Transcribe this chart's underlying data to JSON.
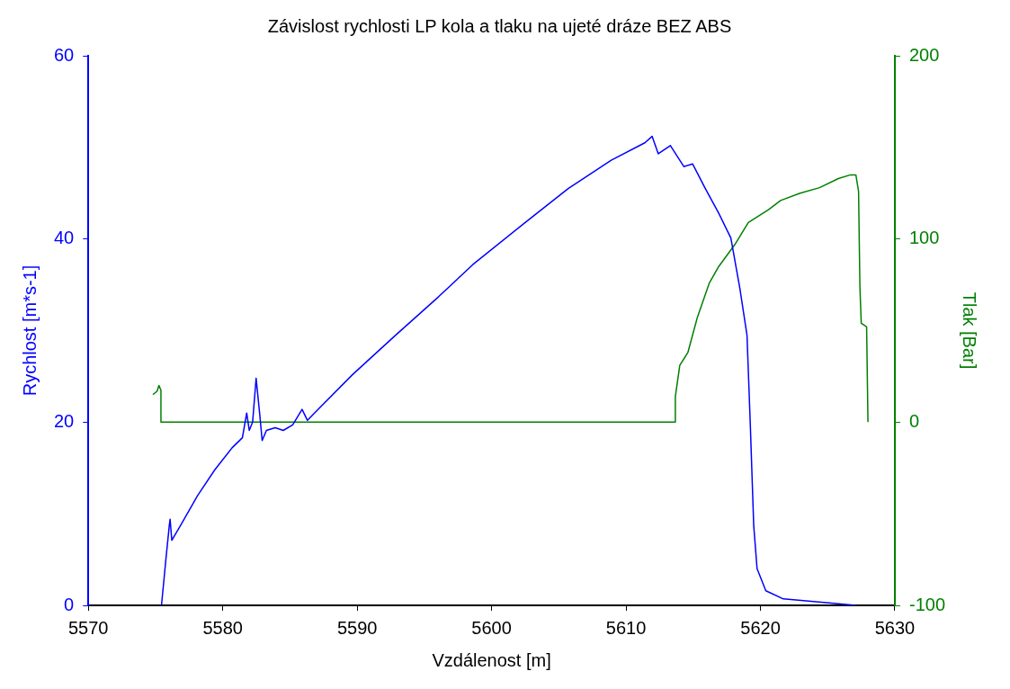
{
  "chart_data": {
    "type": "line",
    "title": "Závislost rychlosti LP kola a tlaku na ujeté dráze BEZ ABS",
    "xlabel": "Vzdálenost [m]",
    "ylabel": "Rychlost [m*s-1]",
    "y2label": "Tlak [Bar]",
    "xlim": [
      5570,
      5630
    ],
    "xticks": [
      5570,
      5580,
      5590,
      5600,
      5610,
      5620,
      5630
    ],
    "ylim": [
      0,
      60
    ],
    "yticks": [
      0,
      20,
      40,
      60
    ],
    "y2lim": [
      -100,
      200
    ],
    "y2ticks": [
      -100,
      0,
      100,
      200
    ],
    "grid": false,
    "legend": false,
    "marker": "none",
    "line_style": "solid",
    "series": [
      {
        "color": "#0000ff",
        "x": [
          5575.44,
          5575.76,
          5576.02,
          5576.08,
          5576.21,
          5576.85,
          5578.13,
          5579.41,
          5580.69,
          5581.46,
          5581.78,
          5581.97,
          5582.22,
          5582.48,
          5582.74,
          5582.93,
          5583.25,
          5583.9,
          5584.5,
          5585.2,
          5585.9,
          5586.3,
          5587.1,
          5589.66,
          5592.86,
          5596.06,
          5598.6,
          5602.5,
          5605.7,
          5608.9,
          5611.4,
          5611.94,
          5612.4,
          5613.3,
          5614.3,
          5614.95,
          5615.9,
          5616.9,
          5617.8,
          5618.47,
          5619.0,
          5619.24,
          5619.5,
          5619.75,
          5620.4,
          5621.7,
          5624.9,
          5627.1
        ],
        "values": [
          0,
          4.9,
          8.7,
          9.4,
          7.1,
          8.7,
          12.0,
          14.8,
          17.2,
          18.3,
          21.0,
          19.1,
          20.0,
          24.8,
          21.0,
          18.0,
          19.1,
          19.4,
          19.1,
          19.7,
          21.4,
          20.2,
          21.4,
          25.2,
          29.5,
          33.7,
          37.2,
          41.8,
          45.5,
          48.6,
          50.5,
          51.2,
          49.3,
          50.2,
          47.9,
          48.2,
          45.5,
          42.8,
          40.1,
          34.6,
          29.5,
          20.0,
          8.7,
          4.0,
          1.6,
          0.7,
          0.3,
          0
        ]
      },
      {
        "color": "#008000",
        "axis": "y2",
        "x": [
          5574.8,
          5575.12,
          5575.25,
          5575.4,
          5575.4,
          5613.67,
          5613.67,
          5614.0,
          5614.6,
          5615.3,
          5616.2,
          5616.9,
          5618.1,
          5619.1,
          5620.6,
          5621.5,
          5622.96,
          5624.4,
          5625.8,
          5626.7,
          5627.1,
          5627.3,
          5627.4,
          5627.5,
          5627.9,
          5628.0
        ],
        "values": [
          15,
          17,
          20,
          17.5,
          0,
          0,
          14,
          31,
          38,
          57,
          76,
          85,
          97,
          109,
          116,
          121,
          125,
          128,
          133,
          135,
          135,
          126,
          74,
          54,
          52,
          0
        ]
      }
    ]
  }
}
